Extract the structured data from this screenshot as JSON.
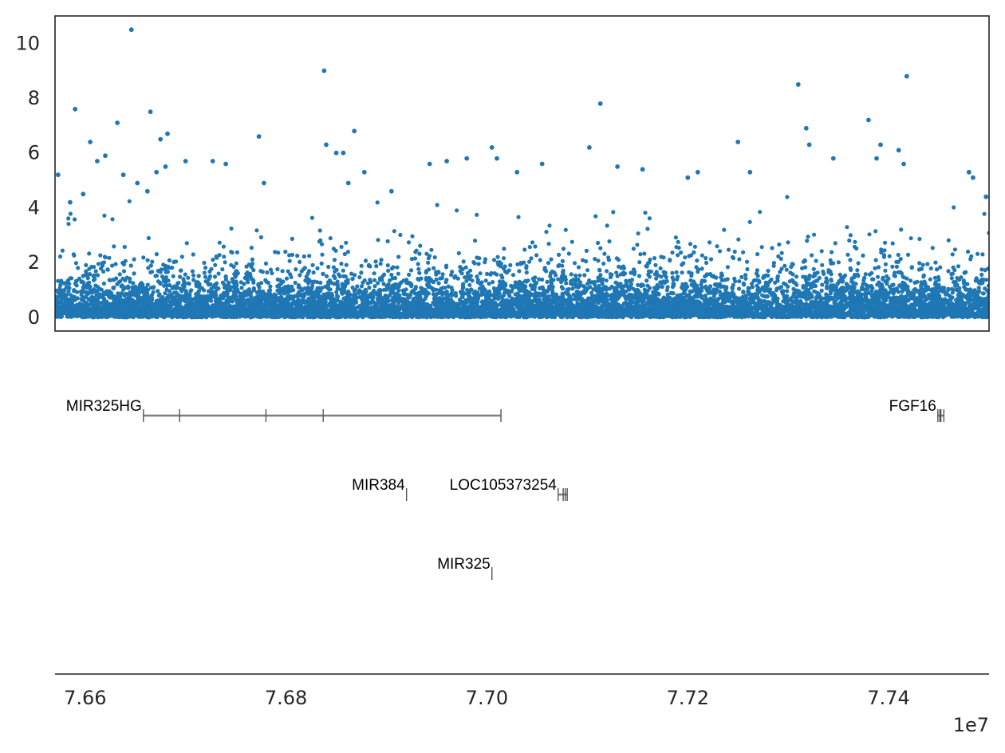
{
  "chart_data": [
    {
      "type": "scatter",
      "panel": "association-scatter",
      "y_ticks": [
        0,
        2,
        4,
        6,
        8,
        10
      ],
      "y_tick_labels": [
        "0",
        "2",
        "4",
        "6",
        "8",
        "10"
      ],
      "ylim": [
        -0.5,
        11.0
      ],
      "xlim": [
        76570000,
        77500000
      ],
      "x_ticks_shown": false,
      "color": "#1f77b4",
      "grid": false,
      "legend": "none",
      "point_count_approx": 9000,
      "bulk_distribution": "dense band of points between 0 and ~2, thinning toward ~4",
      "highlight_points": [
        {
          "x": 76573000,
          "y": 5.2
        },
        {
          "x": 76585000,
          "y": 4.2
        },
        {
          "x": 76590000,
          "y": 7.6
        },
        {
          "x": 76598000,
          "y": 4.5
        },
        {
          "x": 76605000,
          "y": 6.4
        },
        {
          "x": 76612000,
          "y": 5.7
        },
        {
          "x": 76620000,
          "y": 5.9
        },
        {
          "x": 76632000,
          "y": 7.1
        },
        {
          "x": 76638000,
          "y": 5.2
        },
        {
          "x": 76646000,
          "y": 10.5
        },
        {
          "x": 76652000,
          "y": 4.9
        },
        {
          "x": 76662000,
          "y": 4.6
        },
        {
          "x": 76665000,
          "y": 7.5
        },
        {
          "x": 76671000,
          "y": 5.3
        },
        {
          "x": 76675000,
          "y": 6.5
        },
        {
          "x": 76680000,
          "y": 5.5
        },
        {
          "x": 76682000,
          "y": 6.7
        },
        {
          "x": 76700000,
          "y": 5.7
        },
        {
          "x": 76727000,
          "y": 5.7
        },
        {
          "x": 76740000,
          "y": 5.6
        },
        {
          "x": 76773000,
          "y": 6.6
        },
        {
          "x": 76778000,
          "y": 4.9
        },
        {
          "x": 76838000,
          "y": 9.0
        },
        {
          "x": 76840000,
          "y": 6.3
        },
        {
          "x": 76850000,
          "y": 6.0
        },
        {
          "x": 76857000,
          "y": 6.0
        },
        {
          "x": 76862000,
          "y": 4.9
        },
        {
          "x": 76868000,
          "y": 6.8
        },
        {
          "x": 76878000,
          "y": 5.3
        },
        {
          "x": 76905000,
          "y": 4.6
        },
        {
          "x": 76943000,
          "y": 5.6
        },
        {
          "x": 76960000,
          "y": 5.7
        },
        {
          "x": 76980000,
          "y": 5.8
        },
        {
          "x": 77005000,
          "y": 6.2
        },
        {
          "x": 77010000,
          "y": 5.8
        },
        {
          "x": 77030000,
          "y": 5.3
        },
        {
          "x": 77055000,
          "y": 5.6
        },
        {
          "x": 77102000,
          "y": 6.2
        },
        {
          "x": 77113000,
          "y": 7.8
        },
        {
          "x": 77130000,
          "y": 5.5
        },
        {
          "x": 77155000,
          "y": 5.4
        },
        {
          "x": 77200000,
          "y": 5.1
        },
        {
          "x": 77210000,
          "y": 5.3
        },
        {
          "x": 77250000,
          "y": 6.4
        },
        {
          "x": 77262000,
          "y": 5.3
        },
        {
          "x": 77310000,
          "y": 8.5
        },
        {
          "x": 77318000,
          "y": 6.9
        },
        {
          "x": 77321000,
          "y": 6.3
        },
        {
          "x": 77345000,
          "y": 5.8
        },
        {
          "x": 77380000,
          "y": 7.2
        },
        {
          "x": 77388000,
          "y": 5.8
        },
        {
          "x": 77392000,
          "y": 6.3
        },
        {
          "x": 77410000,
          "y": 6.1
        },
        {
          "x": 77415000,
          "y": 5.6
        },
        {
          "x": 77418000,
          "y": 8.8
        },
        {
          "x": 77480000,
          "y": 5.3
        },
        {
          "x": 77484000,
          "y": 5.1
        },
        {
          "x": 77497000,
          "y": 4.4
        }
      ]
    },
    {
      "type": "gene-track",
      "panel": "gene-annotation-track",
      "xlim": [
        76570000,
        77500000
      ],
      "x_ticks": [
        76600000,
        76800000,
        77000000,
        77200000,
        77400000
      ],
      "x_tick_labels": [
        "7.66",
        "7.68",
        "7.70",
        "7.72",
        "7.74"
      ],
      "x_offset_label": "1e7",
      "genes": [
        {
          "name": "MIR325HG",
          "start": 76658000,
          "end": 77014000,
          "row": 0,
          "exon_ticks": [
            76658000,
            76694000,
            76780000,
            76837000,
            77014000
          ]
        },
        {
          "name": "FGF16",
          "start": 77449000,
          "end": 77455000,
          "row": 0,
          "exon_ticks": [
            77449000,
            77451000,
            77452000,
            77455000
          ]
        },
        {
          "name": "MIR384",
          "start": 76920000,
          "end": 76920100,
          "row": 1,
          "exon_ticks": [
            76920000
          ]
        },
        {
          "name": "LOC105373254",
          "start": 77071000,
          "end": 77080000,
          "row": 1,
          "exon_ticks": [
            77071000,
            77076000,
            77078000,
            77080000
          ]
        },
        {
          "name": "MIR325",
          "start": 77005000,
          "end": 77005100,
          "row": 2,
          "exon_ticks": [
            77005000
          ]
        }
      ]
    }
  ]
}
